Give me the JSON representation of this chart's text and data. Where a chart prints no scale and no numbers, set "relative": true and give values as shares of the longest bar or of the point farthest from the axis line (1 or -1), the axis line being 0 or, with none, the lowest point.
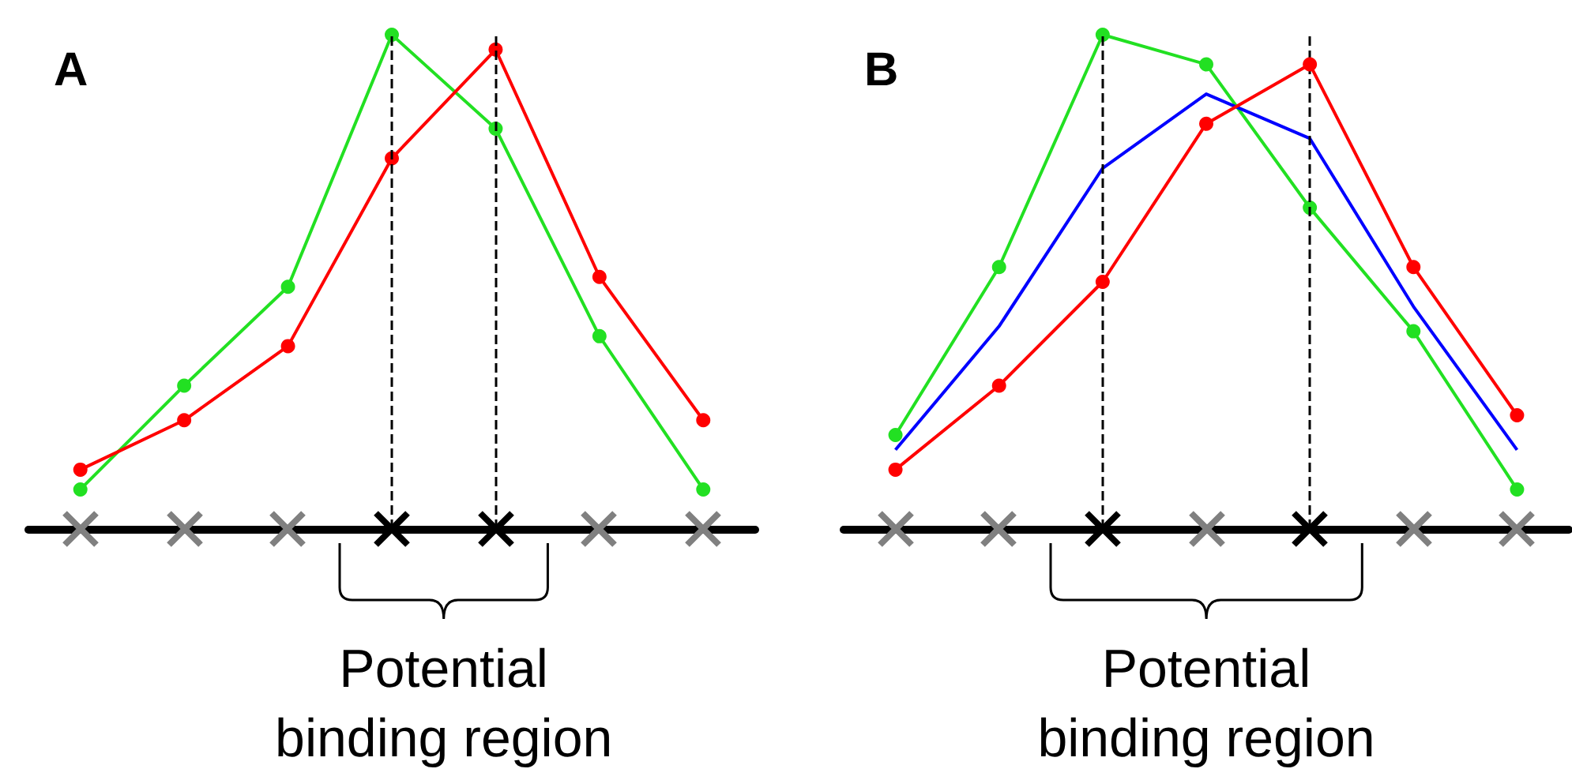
{
  "chart_data": [
    {
      "type": "line",
      "title": "A",
      "relative": true,
      "categories": [
        null,
        null,
        null,
        null,
        null,
        null,
        null
      ],
      "series": [
        {
          "color": "#22e022",
          "marker": "circle",
          "values": [
            0.08,
            0.29,
            0.49,
            1.0,
            0.81,
            0.39,
            0.08
          ]
        },
        {
          "color": "#ff0000",
          "marker": "circle",
          "values": [
            0.12,
            0.22,
            0.37,
            0.75,
            0.97,
            0.51,
            0.22
          ]
        }
      ],
      "annotations": [
        "Potential binding region"
      ]
    },
    {
      "type": "line",
      "title": "B",
      "relative": true,
      "categories": [
        null,
        null,
        null,
        null,
        null,
        null,
        null
      ],
      "series": [
        {
          "color": "#22e022",
          "marker": "circle",
          "values": [
            0.19,
            0.53,
            1.0,
            0.94,
            0.65,
            0.4,
            0.08
          ]
        },
        {
          "color": "#0000ff",
          "marker": "none",
          "values": [
            0.16,
            0.41,
            0.73,
            0.88,
            0.79,
            0.45,
            0.16
          ]
        },
        {
          "color": "#ff0000",
          "marker": "circle",
          "values": [
            0.12,
            0.29,
            0.5,
            0.82,
            0.94,
            0.53,
            0.23
          ]
        }
      ],
      "annotations": [
        "Potential binding region"
      ]
    }
  ]
}
